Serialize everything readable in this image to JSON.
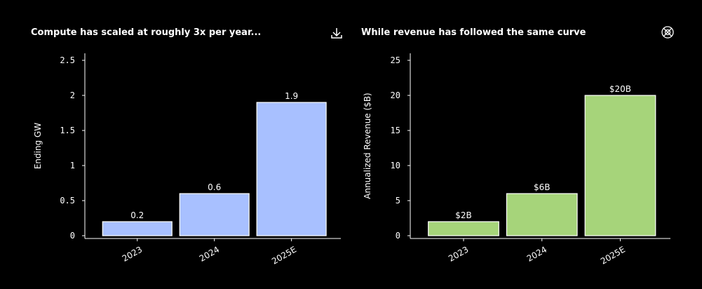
{
  "chart_data": [
    {
      "type": "bar",
      "title": "Compute has scaled at roughly 3x per year...",
      "ylabel": "Ending GW",
      "categories": [
        "2023",
        "2024",
        "2025E"
      ],
      "values": [
        0.2,
        0.6,
        1.9
      ],
      "color": "#a8c0ff",
      "ylim": [
        -0.04,
        2.6
      ],
      "yticks": [
        0,
        0.5,
        1,
        1.5,
        2,
        2.5
      ]
    },
    {
      "type": "bar",
      "title": "While revenue has followed the same curve",
      "ylabel": "Annualized Revenue ($B)",
      "categories": [
        "2023",
        "2024",
        "2025E"
      ],
      "values": [
        2,
        6,
        20
      ],
      "value_labels": [
        "$2B",
        "$6B",
        "$20B"
      ],
      "color": "#a6d47a",
      "ylim": [
        -0.4,
        26
      ],
      "yticks": [
        0,
        5,
        10,
        15,
        20,
        25
      ]
    }
  ]
}
